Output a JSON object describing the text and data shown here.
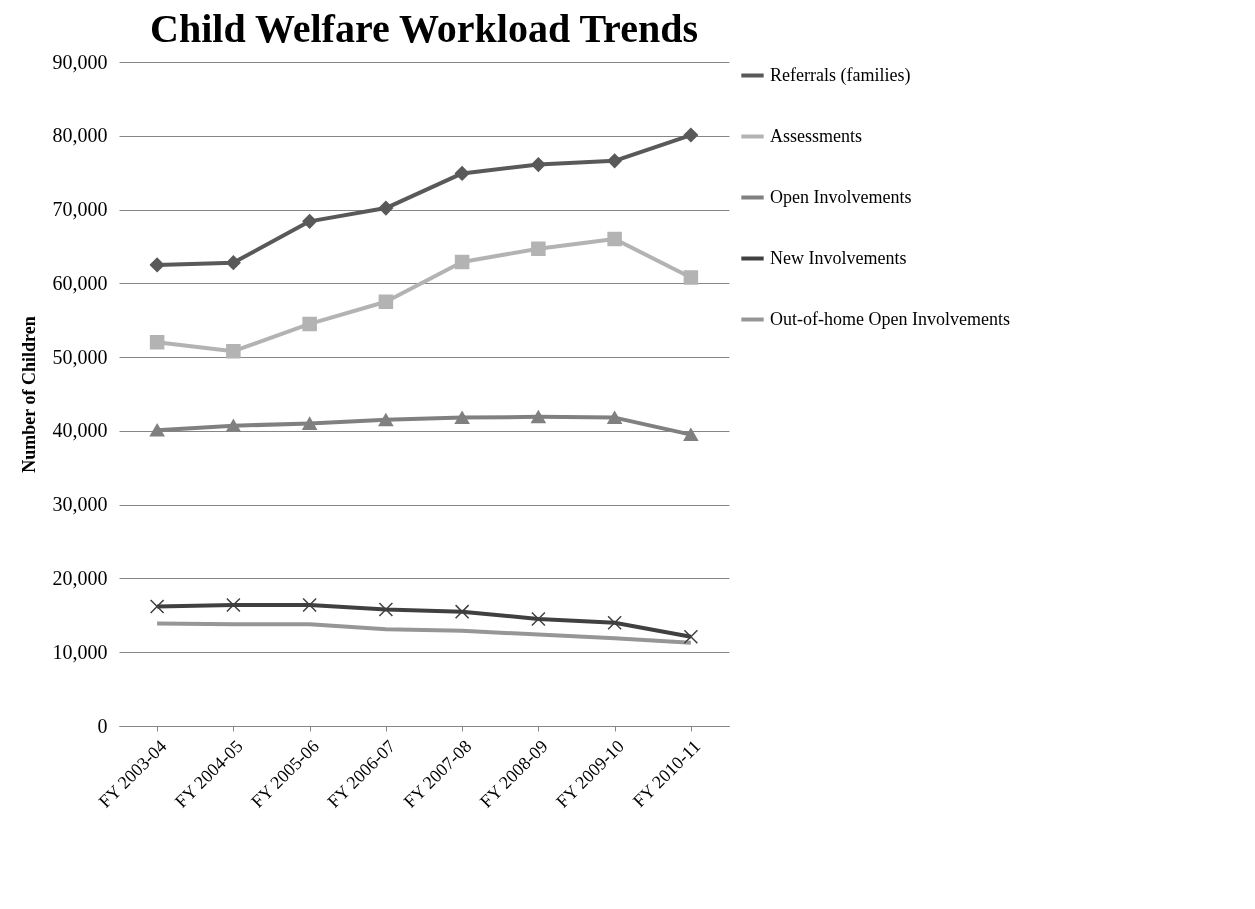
{
  "chart_data": {
    "type": "line",
    "title": "Child Welfare Workload Trends",
    "ylabel": "Number of Children",
    "categories": [
      "FY 2003-04",
      "FY 2004-05",
      "FY 2005-06",
      "FY 2006-07",
      "FY 2007-08",
      "FY 2008-09",
      "FY 2009-10",
      "FY 2010-11"
    ],
    "series": [
      {
        "name": "Referrals (families)",
        "color": "#595959",
        "marker": "diamond",
        "values": [
          62500,
          62800,
          68400,
          70200,
          74900,
          76100,
          76600,
          80100
        ]
      },
      {
        "name": "Assessments",
        "color": "#b3b3b3",
        "marker": "square",
        "values": [
          52000,
          50800,
          54500,
          57500,
          62900,
          64700,
          66000,
          60800
        ]
      },
      {
        "name": "Open Involvements",
        "color": "#808080",
        "marker": "triangle",
        "values": [
          40100,
          40700,
          41000,
          41500,
          41800,
          41900,
          41800,
          39500
        ]
      },
      {
        "name": "New Involvements",
        "color": "#404040",
        "marker": "cross",
        "values": [
          16200,
          16400,
          16400,
          15800,
          15500,
          14500,
          14000,
          12100
        ]
      },
      {
        "name": "Out-of-home Open Involvements",
        "color": "#969696",
        "marker": "none",
        "values": [
          13900,
          13800,
          13800,
          13100,
          12900,
          12400,
          11900,
          11300
        ]
      }
    ],
    "ylim": [
      0,
      90000
    ],
    "yticks": [
      0,
      {
        "value": 10000,
        "label": "10,000"
      },
      {
        "value": 20000,
        "label": "20,000"
      },
      {
        "value": 30000,
        "label": "30,000"
      },
      {
        "value": 40000,
        "label": "40,000"
      },
      {
        "value": 50000,
        "label": "50,000"
      },
      {
        "value": 60000,
        "label": "60,000"
      },
      {
        "value": 70000,
        "label": "70,000"
      },
      {
        "value": 80000,
        "label": "80,000"
      },
      {
        "value": 90000,
        "label": "90,000"
      }
    ],
    "grid": "y",
    "legend": "right",
    "line_style": "solid"
  }
}
